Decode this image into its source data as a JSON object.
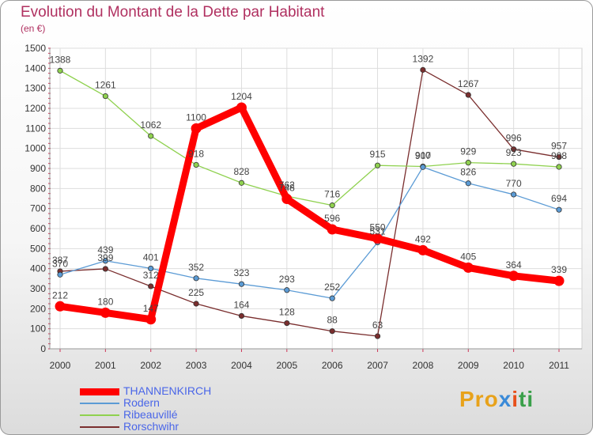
{
  "chart_data": {
    "type": "line",
    "title": "Evolution du Montant de la Dette par Habitant",
    "subtitle": "(en €)",
    "xlabel": "",
    "ylabel": "",
    "ylim": [
      0,
      1500
    ],
    "yticks": [
      0,
      100,
      200,
      300,
      400,
      500,
      600,
      700,
      800,
      900,
      1000,
      1100,
      1200,
      1300,
      1400,
      1500
    ],
    "categories": [
      "2000",
      "2001",
      "2002",
      "2003",
      "2004",
      "2005",
      "2006",
      "2007",
      "2008",
      "2009",
      "2010",
      "2011"
    ],
    "legend_position": "bottom-left",
    "series": [
      {
        "name": "THANNENKIRCH",
        "color": "#ff0000",
        "values": [
          212,
          180,
          147,
          1100,
          1204,
          748,
          596,
          550,
          492,
          405,
          364,
          339
        ]
      },
      {
        "name": "Rodern",
        "color": "#5b9bd5",
        "values": [
          370,
          439,
          401,
          352,
          323,
          293,
          252,
          531,
          907,
          826,
          770,
          694
        ]
      },
      {
        "name": "Ribeauvillé",
        "color": "#8fd14f",
        "values": [
          1388,
          1261,
          1062,
          918,
          828,
          762,
          716,
          915,
          910,
          929,
          923,
          908
        ]
      },
      {
        "name": "Rorschwihr",
        "color": "#7a2e2e",
        "values": [
          387,
          399,
          312,
          225,
          164,
          128,
          88,
          63,
          1392,
          1267,
          996,
          957
        ]
      }
    ]
  },
  "logo": {
    "text": "Proxiti",
    "parts": [
      "Pro",
      "x",
      "i",
      "ti"
    ]
  }
}
